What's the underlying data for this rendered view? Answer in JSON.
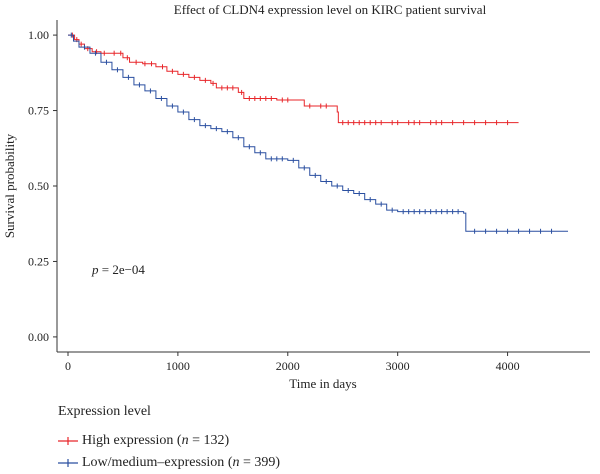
{
  "chart_data": {
    "type": "line",
    "title": "Effect of CLDN4 expression level on KIRC patient survival",
    "xlabel": "Time in days",
    "ylabel": "Survival probability",
    "xlim": [
      -100,
      4750
    ],
    "ylim": [
      -0.05,
      1.05
    ],
    "xticks": [
      "0",
      "1000",
      "2000",
      "3000",
      "4000"
    ],
    "yticks": [
      "0.00",
      "0.25",
      "0.50",
      "0.75",
      "1.00"
    ],
    "annotation": {
      "p": "p",
      "rest": " = 2e−04"
    },
    "legend": {
      "title": "Expression level",
      "placement": "bottom-left"
    },
    "series": [
      {
        "name": "High expression",
        "n_label": " (n = 132)",
        "n_pre": " (",
        "n_var": "n",
        "n_post": " = 132)",
        "color": "#e8262a",
        "points": [
          [
            0,
            1.0
          ],
          [
            60,
            0.985
          ],
          [
            100,
            0.97
          ],
          [
            150,
            0.955
          ],
          [
            220,
            0.945
          ],
          [
            300,
            0.94
          ],
          [
            500,
            0.925
          ],
          [
            560,
            0.91
          ],
          [
            680,
            0.905
          ],
          [
            800,
            0.895
          ],
          [
            900,
            0.88
          ],
          [
            1000,
            0.87
          ],
          [
            1100,
            0.86
          ],
          [
            1200,
            0.85
          ],
          [
            1300,
            0.84
          ],
          [
            1350,
            0.825
          ],
          [
            1550,
            0.81
          ],
          [
            1600,
            0.79
          ],
          [
            1900,
            0.785
          ],
          [
            2150,
            0.765
          ],
          [
            2450,
            0.745
          ],
          [
            2460,
            0.71
          ],
          [
            4100,
            0.71
          ]
        ],
        "censor": [
          40,
          80,
          120,
          180,
          260,
          330,
          420,
          480,
          540,
          620,
          700,
          760,
          860,
          950,
          1050,
          1150,
          1250,
          1320,
          1400,
          1450,
          1500,
          1580,
          1650,
          1700,
          1750,
          1800,
          1850,
          1950,
          2000,
          2200,
          2300,
          2350,
          2500,
          2550,
          2600,
          2650,
          2700,
          2750,
          2800,
          2850,
          2950,
          3000,
          3100,
          3150,
          3200,
          3300,
          3350,
          3400,
          3500,
          3600,
          3700,
          3800,
          3900,
          4000
        ]
      },
      {
        "name": "Low/medium–expression",
        "n_pre": " (",
        "n_var": "n",
        "n_post": " = 399)",
        "color": "#2a4fa0",
        "points": [
          [
            0,
            1.0
          ],
          [
            50,
            0.98
          ],
          [
            100,
            0.96
          ],
          [
            200,
            0.94
          ],
          [
            300,
            0.91
          ],
          [
            400,
            0.885
          ],
          [
            500,
            0.86
          ],
          [
            600,
            0.835
          ],
          [
            700,
            0.815
          ],
          [
            800,
            0.79
          ],
          [
            900,
            0.765
          ],
          [
            1000,
            0.745
          ],
          [
            1100,
            0.72
          ],
          [
            1200,
            0.7
          ],
          [
            1300,
            0.69
          ],
          [
            1400,
            0.68
          ],
          [
            1500,
            0.66
          ],
          [
            1600,
            0.63
          ],
          [
            1700,
            0.61
          ],
          [
            1800,
            0.59
          ],
          [
            2000,
            0.585
          ],
          [
            2100,
            0.56
          ],
          [
            2200,
            0.535
          ],
          [
            2300,
            0.515
          ],
          [
            2400,
            0.5
          ],
          [
            2500,
            0.485
          ],
          [
            2600,
            0.475
          ],
          [
            2700,
            0.455
          ],
          [
            2800,
            0.44
          ],
          [
            2900,
            0.42
          ],
          [
            3000,
            0.415
          ],
          [
            3600,
            0.41
          ],
          [
            3620,
            0.35
          ],
          [
            4550,
            0.35
          ]
        ],
        "censor": [
          30,
          150,
          250,
          350,
          450,
          550,
          650,
          750,
          850,
          950,
          1050,
          1150,
          1250,
          1350,
          1450,
          1550,
          1650,
          1750,
          1850,
          1900,
          1950,
          2050,
          2150,
          2250,
          2350,
          2450,
          2550,
          2650,
          2750,
          2850,
          2950,
          3050,
          3100,
          3150,
          3200,
          3250,
          3300,
          3350,
          3400,
          3450,
          3500,
          3550,
          3700,
          3800,
          3900,
          4000,
          4100,
          4200,
          4300,
          4400
        ]
      }
    ]
  }
}
